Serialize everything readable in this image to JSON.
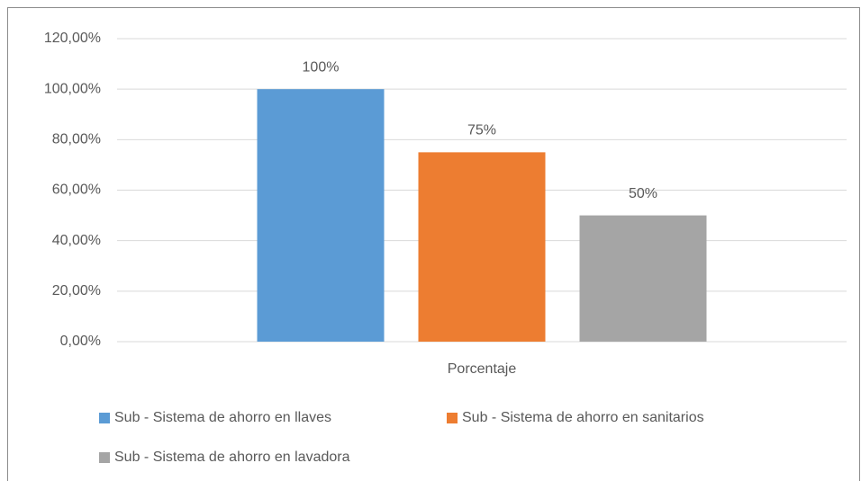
{
  "chart_data": {
    "type": "bar",
    "categories": [
      "Porcentaje"
    ],
    "series": [
      {
        "name": "Sub - Sistema de ahorro en llaves",
        "color": "#5b9bd5",
        "values": [
          100
        ],
        "value_labels": [
          "100%"
        ]
      },
      {
        "name": "Sub - Sistema de ahorro en sanitarios",
        "color": "#ed7d31",
        "values": [
          75
        ],
        "value_labels": [
          "75%"
        ]
      },
      {
        "name": "Sub - Sistema de ahorro en lavadora",
        "color": "#a5a5a5",
        "values": [
          50
        ],
        "value_labels": [
          "50%"
        ]
      }
    ],
    "ylim": [
      0,
      120
    ],
    "yticks": [
      {
        "value": 0,
        "label": "0,00%"
      },
      {
        "value": 20,
        "label": "20,00%"
      },
      {
        "value": 40,
        "label": "40,00%"
      },
      {
        "value": 60,
        "label": "60,00%"
      },
      {
        "value": 80,
        "label": "80,00%"
      },
      {
        "value": 100,
        "label": "100,00%"
      },
      {
        "value": 120,
        "label": "120,00%"
      }
    ],
    "grid": true,
    "legend": "bottom"
  }
}
